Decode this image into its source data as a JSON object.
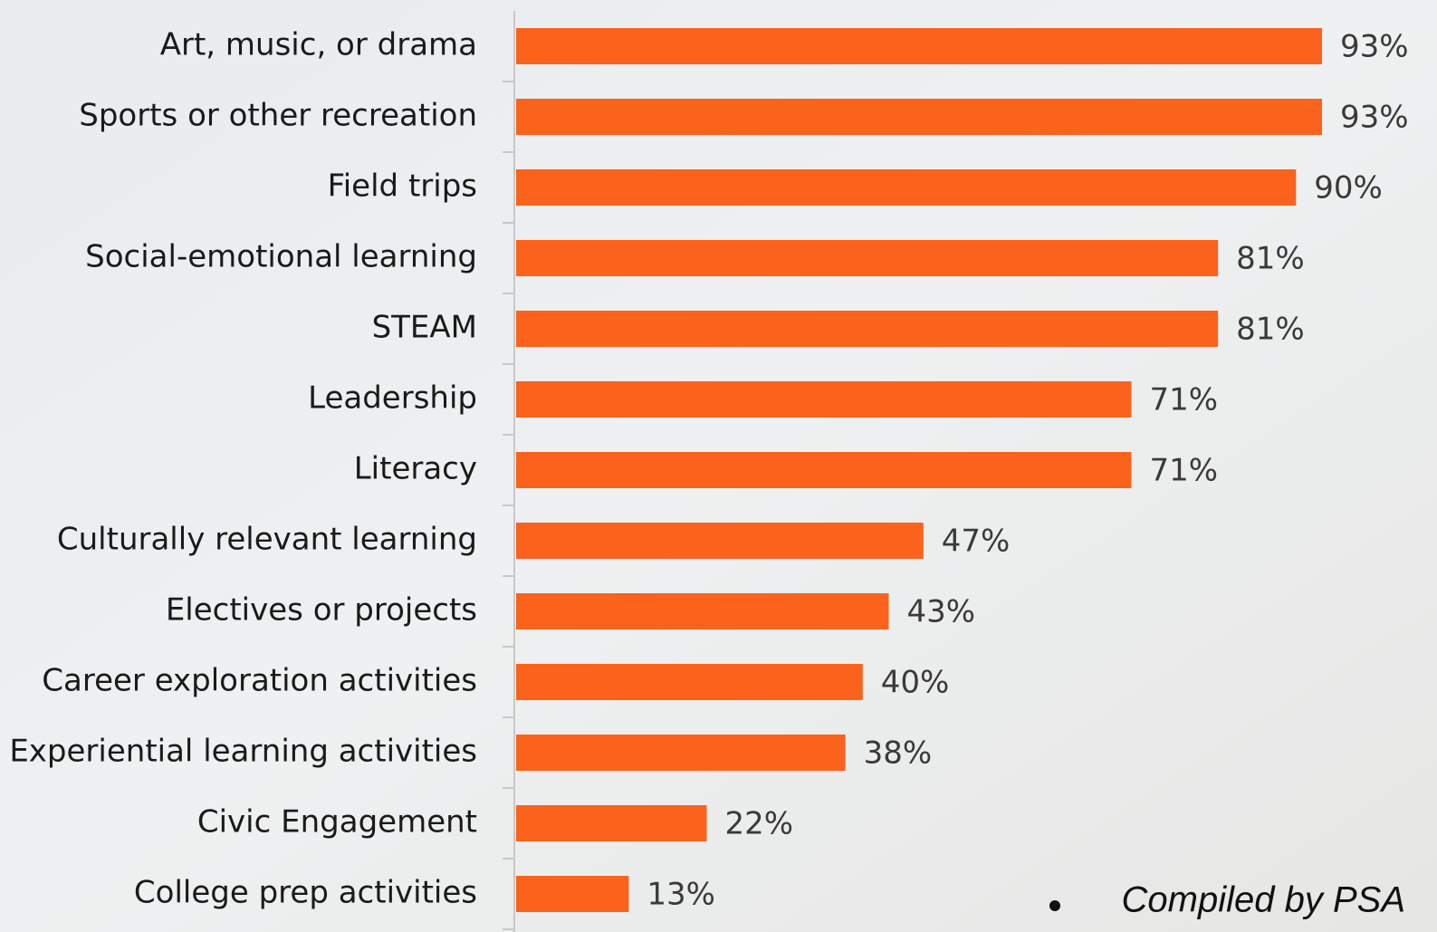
{
  "chart_data": {
    "type": "bar",
    "orientation": "horizontal",
    "categories": [
      "Art, music, or drama",
      "Sports or other recreation",
      "Field trips",
      "Social-emotional learning",
      "STEAM",
      "Leadership",
      "Literacy",
      "Culturally relevant learning",
      "Electives or projects",
      "Career exploration activities",
      "Experiential learning activities",
      "Civic Engagement",
      "College prep activities"
    ],
    "values": [
      93,
      93,
      90,
      81,
      81,
      71,
      71,
      47,
      43,
      40,
      38,
      22,
      13
    ],
    "value_labels": [
      "93%",
      "93%",
      "90%",
      "81%",
      "81%",
      "71%",
      "71%",
      "47%",
      "43%",
      "40%",
      "38%",
      "22%",
      "13%"
    ],
    "color": "#fb621c",
    "annotation": "Compiled by PSA"
  }
}
